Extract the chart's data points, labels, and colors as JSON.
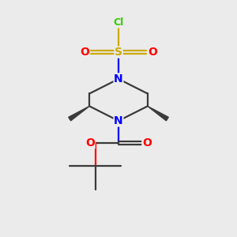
{
  "bg_color": "#ebebeb",
  "atom_colors": {
    "C": "#3a3a3a",
    "N": "#0000ff",
    "O": "#ff0000",
    "S": "#ccaa00",
    "Cl": "#33cc00"
  }
}
